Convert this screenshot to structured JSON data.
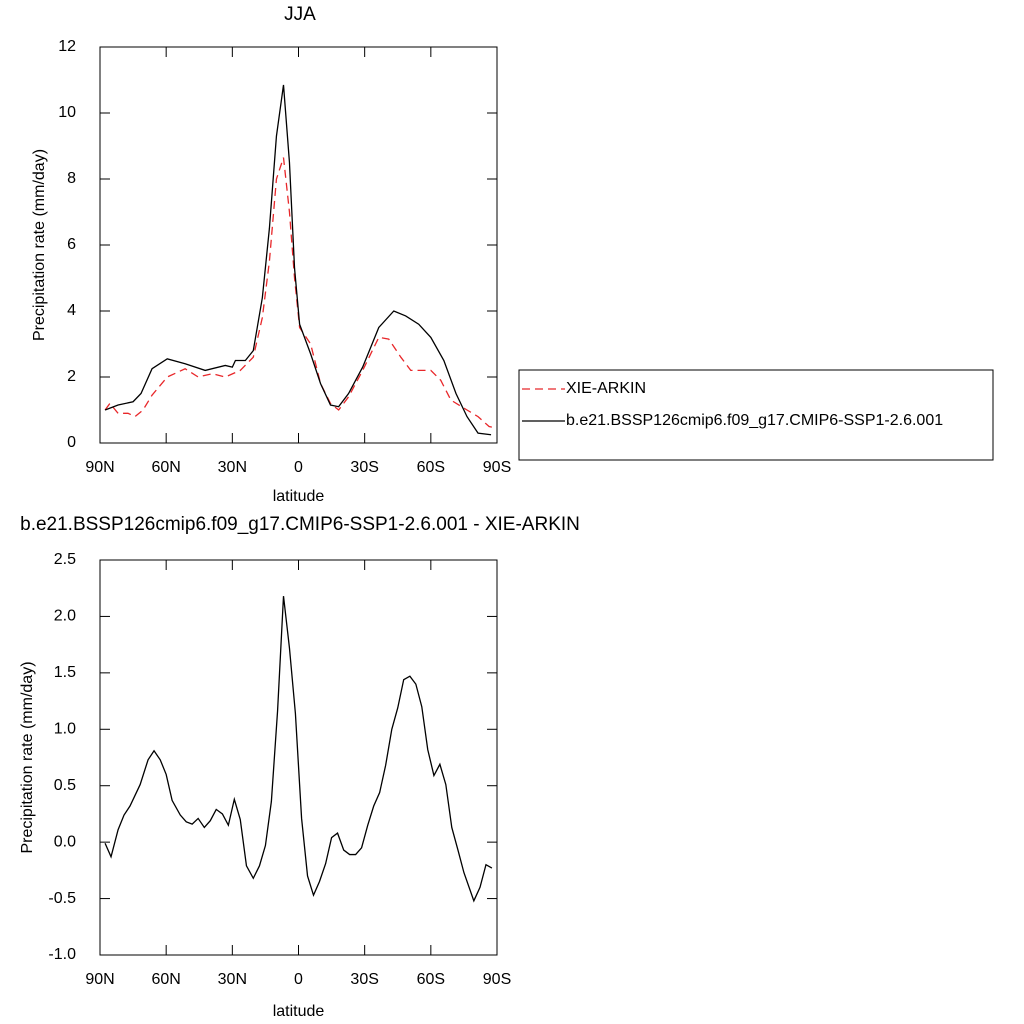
{
  "chart_data": [
    {
      "type": "line",
      "title": "JJA",
      "xlabel": "latitude",
      "ylabel": "Precipitation rate (mm/day)",
      "xlim": [
        90,
        -90
      ],
      "ylim": [
        0,
        12
      ],
      "xticks": [
        {
          "value": 90,
          "label": "90N"
        },
        {
          "value": 60,
          "label": "60N"
        },
        {
          "value": 30,
          "label": "30N"
        },
        0,
        {
          "value": -30,
          "label": "30S"
        },
        {
          "value": -60,
          "label": "60S"
        },
        {
          "value": -90,
          "label": "90S"
        }
      ],
      "yticks": [
        0,
        2,
        4,
        6,
        8,
        10,
        12
      ],
      "legend": "right",
      "series": [
        {
          "name": "XIE-ARKIN",
          "color": "#e8272a",
          "dashed": true,
          "x": [
            87.7,
            85.5,
            81.8,
            77.3,
            74.1,
            70.5,
            66.4,
            59.5,
            51.4,
            45.5,
            39.1,
            33.2,
            26.4,
            20.5,
            16.4,
            13.2,
            10.0,
            6.8,
            4.1,
            1.8,
            -0.5,
            -5.5,
            -10.0,
            -14.5,
            -18.2,
            -22.7,
            -29.1,
            -36.4,
            -40.9,
            -46.4,
            -50.9,
            -55.5,
            -60.0,
            -64.5,
            -69.1,
            -76.4,
            -81.4,
            -86.4,
            -89.5
          ],
          "values": [
            1.0,
            1.2,
            0.9,
            0.9,
            0.8,
            1.0,
            1.45,
            2.0,
            2.25,
            2.0,
            2.1,
            2.0,
            2.2,
            2.6,
            3.8,
            5.5,
            8.0,
            8.65,
            7.0,
            5.0,
            3.5,
            3.0,
            1.8,
            1.2,
            1.0,
            1.4,
            2.2,
            3.2,
            3.15,
            2.6,
            2.2,
            2.2,
            2.2,
            1.9,
            1.3,
            1.0,
            0.8,
            0.5,
            0.45
          ]
        },
        {
          "name": "b.e21.BSSP126cmip6.f09_g17.CMIP6-SSP1-2.6.001",
          "color": "#000000",
          "dashed": false,
          "x": [
            87.7,
            81.8,
            75.0,
            71.4,
            66.4,
            59.5,
            51.4,
            42.3,
            33.2,
            30.0,
            28.6,
            24.1,
            20.5,
            16.4,
            13.2,
            10.0,
            6.8,
            4.1,
            1.8,
            -0.5,
            -5.5,
            -10.0,
            -14.5,
            -18.2,
            -22.7,
            -29.1,
            -36.4,
            -43.2,
            -48.6,
            -54.5,
            -60.0,
            -65.9,
            -71.4,
            -76.4,
            -81.4,
            -87.3
          ],
          "values": [
            1.0,
            1.15,
            1.25,
            1.5,
            2.25,
            2.55,
            2.4,
            2.2,
            2.35,
            2.3,
            2.5,
            2.5,
            2.8,
            4.4,
            6.5,
            9.3,
            10.85,
            8.5,
            5.3,
            3.6,
            2.7,
            1.8,
            1.15,
            1.1,
            1.5,
            2.3,
            3.5,
            4.0,
            3.85,
            3.6,
            3.2,
            2.5,
            1.5,
            0.8,
            0.3,
            0.25
          ]
        }
      ]
    },
    {
      "type": "line",
      "title": "b.e21.BSSP126cmip6.f09_g17.CMIP6-SSP1-2.6.001 - XIE-ARKIN",
      "xlabel": "latitude",
      "ylabel": "Precipitation rate (mm/day)",
      "xlim": [
        90,
        -90
      ],
      "ylim": [
        -1,
        2.5
      ],
      "xticks": [
        {
          "value": 90,
          "label": "90N"
        },
        {
          "value": 60,
          "label": "60N"
        },
        {
          "value": 30,
          "label": "30N"
        },
        0,
        {
          "value": -30,
          "label": "30S"
        },
        {
          "value": -60,
          "label": "60S"
        },
        {
          "value": -90,
          "label": "90S"
        }
      ],
      "yticks": [
        {
          "value": -1,
          "label": "-1.0"
        },
        -0.5,
        {
          "value": 0,
          "label": "0.0"
        },
        0.5,
        {
          "value": 1,
          "label": "1.0"
        },
        1.5,
        {
          "value": 2,
          "label": "2.0"
        },
        2.5
      ],
      "series": [
        {
          "color": "#000000",
          "dashed": false,
          "x": [
            87.7,
            85.0,
            81.8,
            79.1,
            76.4,
            71.8,
            68.2,
            65.5,
            62.7,
            60.0,
            57.3,
            53.6,
            50.9,
            48.2,
            45.5,
            42.7,
            40.0,
            37.3,
            34.5,
            31.8,
            29.1,
            26.4,
            23.6,
            20.5,
            17.7,
            15.0,
            12.3,
            9.5,
            6.8,
            4.1,
            1.4,
            -1.4,
            -4.1,
            -6.8,
            -9.5,
            -12.3,
            -15.0,
            -17.7,
            -20.5,
            -23.2,
            -25.9,
            -28.6,
            -31.4,
            -34.1,
            -36.8,
            -39.5,
            -42.3,
            -45.0,
            -47.7,
            -50.5,
            -53.2,
            -55.9,
            -58.6,
            -61.4,
            -64.1,
            -66.8,
            -69.5,
            -72.3,
            -75.0,
            -79.5,
            -82.3,
            -85.0,
            -87.7
          ],
          "values": [
            -0.01,
            -0.13,
            0.11,
            0.24,
            0.32,
            0.51,
            0.73,
            0.81,
            0.73,
            0.6,
            0.37,
            0.24,
            0.18,
            0.16,
            0.21,
            0.13,
            0.19,
            0.29,
            0.25,
            0.15,
            0.38,
            0.2,
            -0.21,
            -0.32,
            -0.21,
            -0.03,
            0.36,
            1.16,
            2.18,
            1.72,
            1.14,
            0.21,
            -0.3,
            -0.47,
            -0.35,
            -0.19,
            0.04,
            0.08,
            -0.07,
            -0.11,
            -0.11,
            -0.05,
            0.15,
            0.32,
            0.44,
            0.68,
            1.0,
            1.19,
            1.44,
            1.47,
            1.4,
            1.2,
            0.82,
            0.59,
            0.69,
            0.51,
            0.13,
            -0.07,
            -0.27,
            -0.52,
            -0.4,
            -0.2,
            -0.23
          ]
        }
      ]
    }
  ]
}
